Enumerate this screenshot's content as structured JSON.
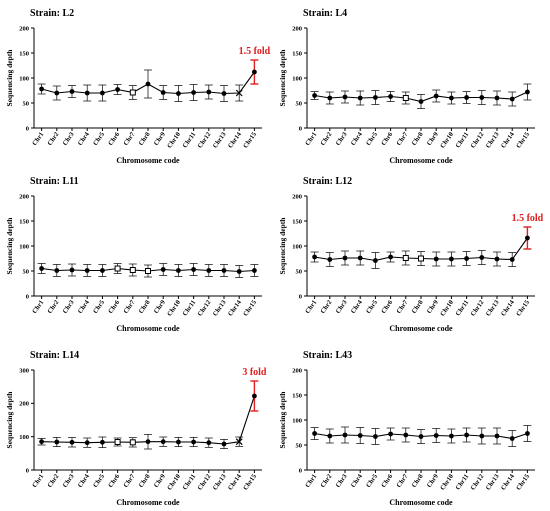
{
  "colors": {
    "series": "#000000",
    "highlight": "#e02020"
  },
  "chart_data": [
    {
      "type": "line",
      "title": "Strain: L2",
      "xlabel": "Chromosome code",
      "ylabel": "Sequencing depth",
      "ylim": [
        0,
        200
      ],
      "yticks": [
        "0",
        "50",
        "100",
        "150",
        "200"
      ],
      "categories": [
        "Chr1",
        "Chr2",
        "Chr3",
        "Chr4",
        "Chr5",
        "Chr6",
        "Chr7",
        "Chr8",
        "Chr9",
        "Chr10",
        "Chr11",
        "Chr12",
        "Chr13",
        "Chr14",
        "Chr15"
      ],
      "values": [
        78,
        70,
        73,
        70,
        70,
        77,
        71,
        88,
        71,
        69,
        71,
        72,
        69,
        70,
        112
      ],
      "errors": [
        10,
        14,
        12,
        16,
        16,
        10,
        14,
        28,
        14,
        16,
        16,
        14,
        16,
        16,
        24
      ],
      "markers": [
        "circle",
        "circle",
        "circle",
        "circle",
        "circle",
        "circle",
        "square",
        "circle",
        "circle",
        "circle",
        "circle",
        "circle",
        "circle",
        "x",
        "circle"
      ],
      "highlight_index": 14,
      "annotation": "1.5 fold"
    },
    {
      "type": "line",
      "title": "Strain: L4",
      "xlabel": "Chromosome code",
      "ylabel": "Sequencing depth",
      "ylim": [
        0,
        200
      ],
      "yticks": [
        "0",
        "50",
        "100",
        "150",
        "200"
      ],
      "categories": [
        "Chr1",
        "Chr2",
        "Chr3",
        "Chr4",
        "Chr5",
        "Chr6",
        "Chr7",
        "Chr8",
        "Chr9",
        "Chr10",
        "Chr11",
        "Chr12",
        "Chr13",
        "Chr14",
        "Chr15"
      ],
      "values": [
        65,
        60,
        62,
        60,
        61,
        63,
        60,
        53,
        64,
        60,
        61,
        61,
        60,
        58,
        72
      ],
      "errors": [
        8,
        12,
        12,
        14,
        14,
        10,
        12,
        14,
        12,
        12,
        12,
        14,
        14,
        14,
        16
      ],
      "markers": [
        "circle",
        "circle",
        "circle",
        "circle",
        "circle",
        "circle",
        "square",
        "circle",
        "circle",
        "circle",
        "circle",
        "circle",
        "circle",
        "circle",
        "circle"
      ]
    },
    {
      "type": "line",
      "title": "Strain: L11",
      "xlabel": "Chromosome code",
      "ylabel": "Sequencing depth",
      "ylim": [
        0,
        200
      ],
      "yticks": [
        "0",
        "50",
        "100",
        "150",
        "200"
      ],
      "categories": [
        "Chr1",
        "Chr2",
        "Chr3",
        "Chr4",
        "Chr5",
        "Chr6",
        "Chr7",
        "Chr8",
        "Chr9",
        "Chr10",
        "Chr11",
        "Chr12",
        "Chr13",
        "Chr14",
        "Chr15"
      ],
      "values": [
        55,
        51,
        52,
        51,
        51,
        55,
        52,
        50,
        53,
        51,
        53,
        51,
        51,
        49,
        51
      ],
      "errors": [
        10,
        12,
        12,
        12,
        12,
        10,
        12,
        12,
        12,
        12,
        12,
        12,
        12,
        12,
        12
      ],
      "markers": [
        "circle",
        "circle",
        "circle",
        "circle",
        "circle",
        "square",
        "square",
        "square",
        "circle",
        "circle",
        "circle",
        "circle",
        "circle",
        "circle",
        "circle"
      ]
    },
    {
      "type": "line",
      "title": "Strain: L12",
      "xlabel": "Chromosome code",
      "ylabel": "Sequencing depth",
      "ylim": [
        0,
        200
      ],
      "yticks": [
        "0",
        "50",
        "100",
        "150",
        "200"
      ],
      "categories": [
        "Chr1",
        "Chr2",
        "Chr3",
        "Chr4",
        "Chr5",
        "Chr6",
        "Chr7",
        "Chr8",
        "Chr9",
        "Chr10",
        "Chr11",
        "Chr12",
        "Chr13",
        "Chr14",
        "Chr15"
      ],
      "values": [
        78,
        73,
        76,
        76,
        71,
        78,
        76,
        75,
        74,
        74,
        75,
        77,
        74,
        73,
        116
      ],
      "errors": [
        10,
        14,
        14,
        14,
        16,
        10,
        14,
        14,
        14,
        14,
        14,
        14,
        14,
        14,
        22
      ],
      "markers": [
        "circle",
        "circle",
        "circle",
        "circle",
        "circle",
        "circle",
        "square",
        "square",
        "circle",
        "circle",
        "circle",
        "circle",
        "circle",
        "circle",
        "circle"
      ],
      "highlight_index": 14,
      "annotation": "1.5 fold"
    },
    {
      "type": "line",
      "title": "Strain: L14",
      "xlabel": "Chromosome code",
      "ylabel": "Sequencing depth",
      "ylim": [
        0,
        300
      ],
      "yticks": [
        "0",
        "100",
        "200",
        "300"
      ],
      "categories": [
        "Chr1",
        "Chr2",
        "Chr3",
        "Chr4",
        "Chr5",
        "Chr6",
        "Chr7",
        "Chr8",
        "Chr9",
        "Chr10",
        "Chr11",
        "Chr12",
        "Chr13",
        "Chr14",
        "Chr15"
      ],
      "values": [
        85,
        84,
        83,
        82,
        83,
        84,
        83,
        85,
        85,
        84,
        84,
        82,
        78,
        85,
        222
      ],
      "errors": [
        10,
        14,
        14,
        14,
        16,
        12,
        14,
        22,
        14,
        14,
        14,
        14,
        14,
        14,
        45
      ],
      "markers": [
        "circle",
        "circle",
        "circle",
        "circle",
        "circle",
        "square",
        "square",
        "circle",
        "circle",
        "circle",
        "circle",
        "circle",
        "circle",
        "x",
        "circle"
      ],
      "highlight_index": 14,
      "annotation": "3 fold"
    },
    {
      "type": "line",
      "title": "Strain: L43",
      "xlabel": "Chromosome code",
      "ylabel": "Sequencing depth",
      "ylim": [
        0,
        200
      ],
      "yticks": [
        "0",
        "50",
        "100",
        "150",
        "200"
      ],
      "categories": [
        "Chr1",
        "Chr2",
        "Chr3",
        "Chr4",
        "Chr5",
        "Chr6",
        "Chr7",
        "Chr8",
        "Chr9",
        "Chr10",
        "Chr11",
        "Chr12",
        "Chr13",
        "Chr14",
        "Chr15"
      ],
      "values": [
        73,
        68,
        70,
        69,
        67,
        72,
        70,
        67,
        69,
        68,
        70,
        68,
        68,
        63,
        73
      ],
      "errors": [
        12,
        14,
        16,
        16,
        16,
        12,
        14,
        14,
        14,
        14,
        14,
        16,
        16,
        16,
        16
      ],
      "markers": [
        "circle",
        "circle",
        "circle",
        "circle",
        "circle",
        "circle",
        "circle",
        "circle",
        "circle",
        "circle",
        "circle",
        "circle",
        "circle",
        "circle",
        "circle"
      ]
    }
  ]
}
